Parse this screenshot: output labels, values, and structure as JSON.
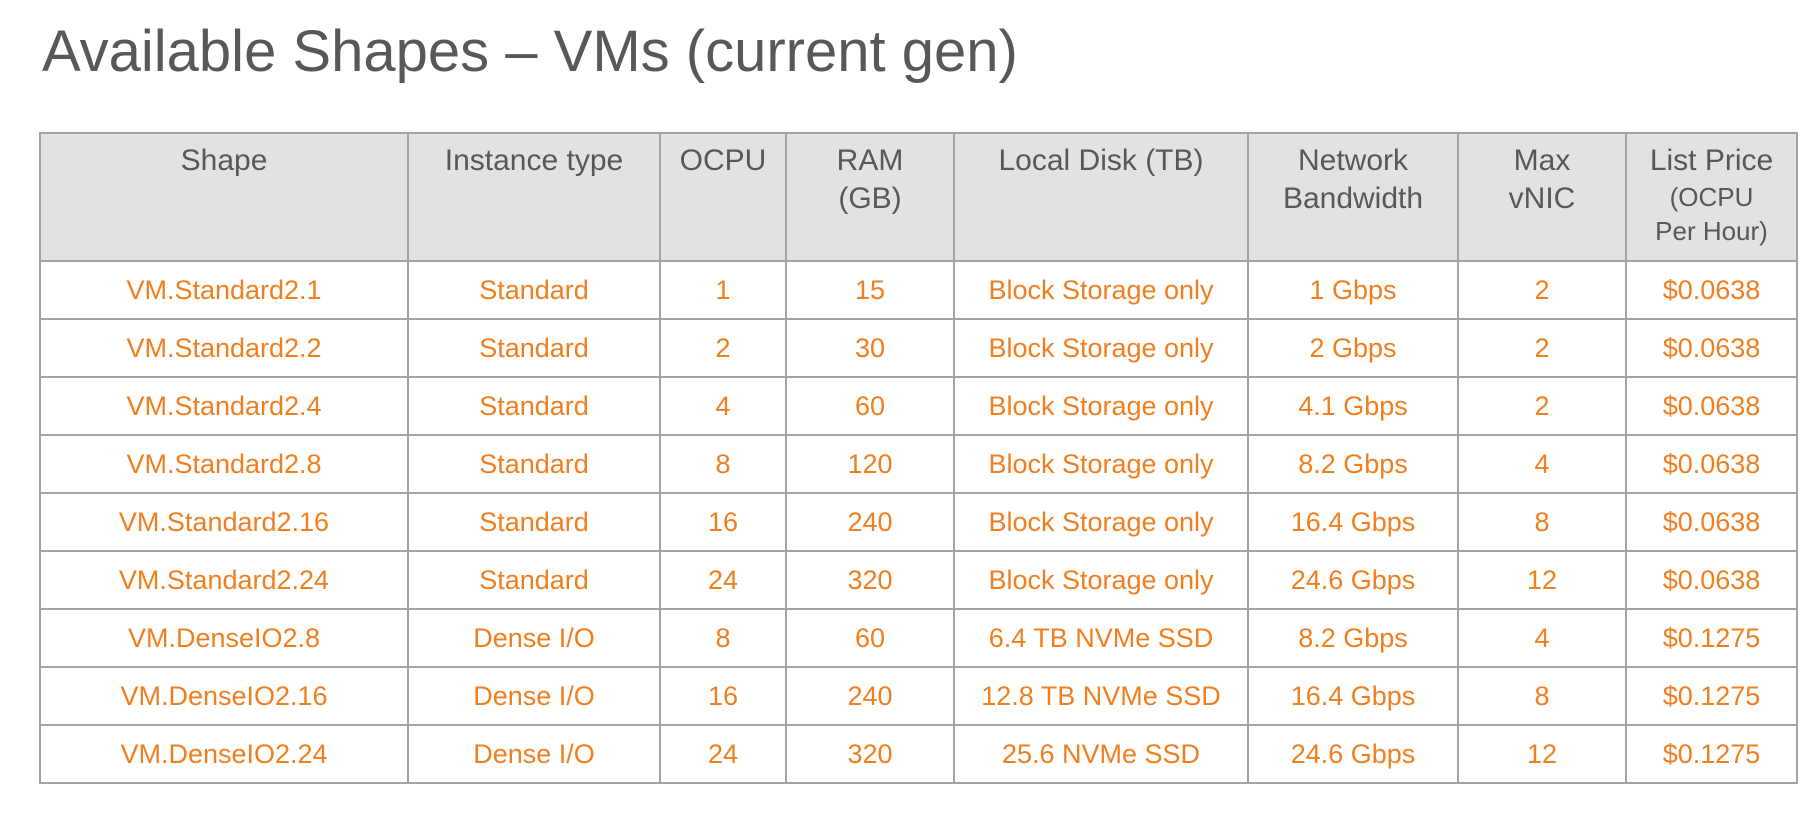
{
  "title": "Available Shapes – VMs (current gen)",
  "accent_color": "#f07f1f",
  "header_bg": "#e2e2e4",
  "text_color": "#58585a",
  "table": {
    "headers": [
      {
        "lines": [
          "Shape"
        ],
        "sub": []
      },
      {
        "lines": [
          "Instance type"
        ],
        "sub": []
      },
      {
        "lines": [
          "OCPU"
        ],
        "sub": []
      },
      {
        "lines": [
          "RAM",
          "(GB)"
        ],
        "sub": []
      },
      {
        "lines": [
          "Local Disk (TB)"
        ],
        "sub": []
      },
      {
        "lines": [
          "Network",
          "Bandwidth"
        ],
        "sub": []
      },
      {
        "lines": [
          "Max",
          "vNIC"
        ],
        "sub": []
      },
      {
        "lines": [
          "List Price"
        ],
        "sub": [
          "(OCPU",
          "Per Hour)"
        ]
      }
    ],
    "rows": [
      [
        "VM.Standard2.1",
        "Standard",
        "1",
        "15",
        "Block Storage only",
        "1 Gbps",
        "2",
        "$0.0638"
      ],
      [
        "VM.Standard2.2",
        "Standard",
        "2",
        "30",
        "Block Storage only",
        "2 Gbps",
        "2",
        "$0.0638"
      ],
      [
        "VM.Standard2.4",
        "Standard",
        "4",
        "60",
        "Block Storage only",
        "4.1 Gbps",
        "2",
        "$0.0638"
      ],
      [
        "VM.Standard2.8",
        "Standard",
        "8",
        "120",
        "Block Storage only",
        "8.2 Gbps",
        "4",
        "$0.0638"
      ],
      [
        "VM.Standard2.16",
        "Standard",
        "16",
        "240",
        "Block Storage only",
        "16.4 Gbps",
        "8",
        "$0.0638"
      ],
      [
        "VM.Standard2.24",
        "Standard",
        "24",
        "320",
        "Block Storage only",
        "24.6 Gbps",
        "12",
        "$0.0638"
      ],
      [
        "VM.DenseIO2.8",
        "Dense I/O",
        "8",
        "60",
        "6.4 TB NVMe SSD",
        "8.2 Gbps",
        "4",
        "$0.1275"
      ],
      [
        "VM.DenseIO2.16",
        "Dense I/O",
        "16",
        "240",
        "12.8 TB NVMe SSD",
        "16.4 Gbps",
        "8",
        "$0.1275"
      ],
      [
        "VM.DenseIO2.24",
        "Dense I/O",
        "24",
        "320",
        "25.6 NVMe SSD",
        "24.6 Gbps",
        "12",
        "$0.1275"
      ]
    ]
  }
}
